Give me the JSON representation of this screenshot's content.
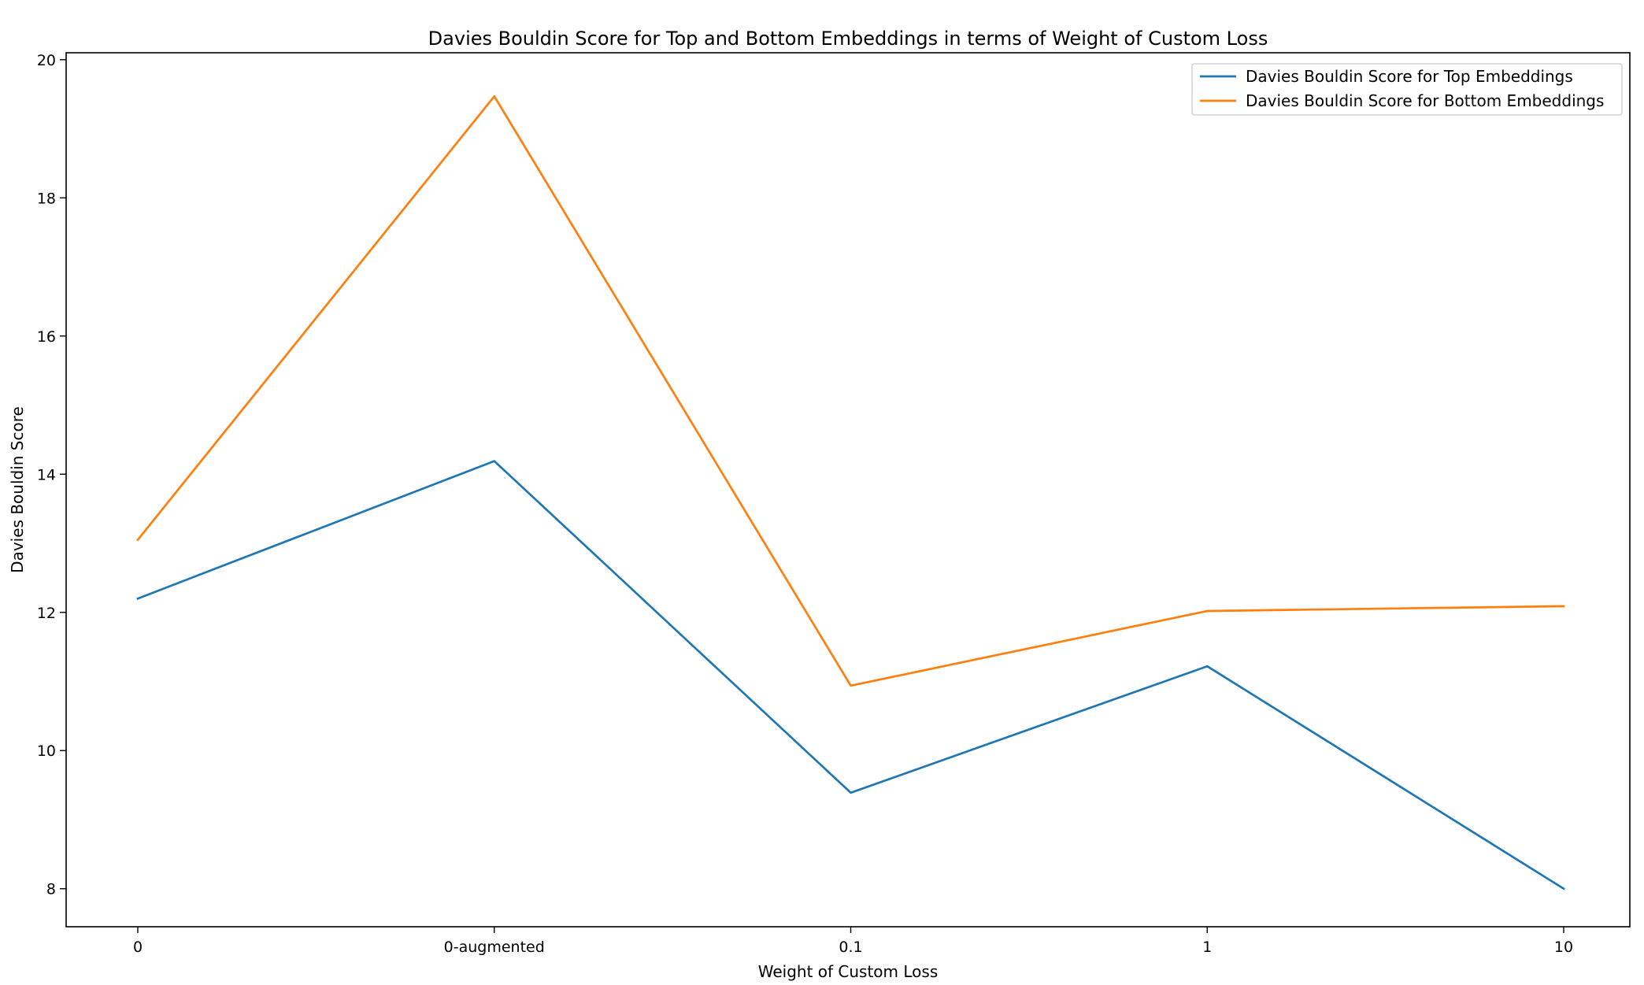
{
  "chart_data": {
    "type": "line",
    "title": "Davies Bouldin Score for Top and Bottom Embeddings in terms of Weight of Custom Loss",
    "xlabel": "Weight of Custom Loss",
    "ylabel": "Davies Bouldin Score",
    "categories": [
      "0",
      "0-augmented",
      "0.1",
      "1",
      "10"
    ],
    "yticks": [
      "8",
      "10",
      "12",
      "14",
      "16",
      "18",
      "20"
    ],
    "ylim": [
      7.45,
      20.1
    ],
    "grid": false,
    "legend_position": "top-right",
    "series": [
      {
        "name": "Davies Bouldin Score for Top Embeddings",
        "color": "#1f77b4",
        "values": [
          12.2,
          14.19,
          9.39,
          11.22,
          8.0
        ]
      },
      {
        "name": "Davies Bouldin Score for Bottom Embeddings",
        "color": "#ff7f0e",
        "values": [
          13.05,
          19.47,
          10.94,
          12.02,
          12.09
        ]
      }
    ]
  }
}
